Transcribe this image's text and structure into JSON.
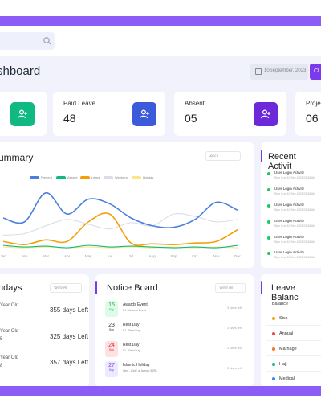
{
  "header": {
    "title": "shboard",
    "date": "10September, 2023",
    "clock_label": "Cl"
  },
  "search": {
    "placeholder": ""
  },
  "cards": [
    {
      "label": "Paid Leave",
      "value": "48",
      "color": "#3b5bdb"
    },
    {
      "label": "Absent",
      "value": "05",
      "color": "#6d28d9"
    },
    {
      "label": "Projec",
      "value": "06"
    }
  ],
  "summary": {
    "title": "ummary",
    "year": "2023"
  },
  "chart_data": {
    "type": "line",
    "x": [
      "Jan",
      "Feb",
      "Mar",
      "Apr",
      "May",
      "Jun",
      "Jul",
      "Aug",
      "Sep",
      "Oct",
      "Nov",
      "Dec"
    ],
    "series": [
      {
        "name": "Present",
        "color": "#4a7fe0",
        "values": [
          40,
          35,
          72,
          45,
          64,
          58,
          40,
          30,
          28,
          38,
          60,
          50
        ]
      },
      {
        "name": "Absent",
        "color": "#10b981",
        "values": [
          5,
          3,
          4,
          2,
          5,
          3,
          4,
          3,
          2,
          3,
          2,
          5
        ]
      },
      {
        "name": "Leave",
        "color": "#f59e0b",
        "values": [
          10,
          6,
          12,
          10,
          35,
          45,
          8,
          7,
          6,
          8,
          10,
          25
        ]
      },
      {
        "name": "Weekend",
        "color": "#dcdce8",
        "values": [
          18,
          20,
          30,
          38,
          32,
          26,
          34,
          30,
          45,
          42,
          35,
          38
        ]
      },
      {
        "name": "Holiday",
        "color": "#fde68a",
        "values": [
          3,
          2,
          3,
          2,
          3,
          2,
          3,
          2,
          3,
          2,
          3,
          2
        ]
      }
    ],
    "ylim": [
      0,
      80
    ]
  },
  "activity": {
    "title": "Recent Activit",
    "items": [
      {
        "title": "User Login Activity",
        "sub": "Sign in at 10 Sep 2023 09:30 AM"
      },
      {
        "title": "User Login Activity",
        "sub": "Sign in at 10 Sep 2023 09:30 AM"
      },
      {
        "title": "User Login Activity",
        "sub": "Sign in at 10 Sep 2023 09:30 AM"
      },
      {
        "title": "User Login Activity",
        "sub": "Sign in at 10 Sep 2023 09:30 AM"
      },
      {
        "title": "User Login Activity",
        "sub": "Sign in at 10 Sep 2023 09:30 AM"
      },
      {
        "title": "User Login Activity",
        "sub": "Sign in at 10 Sep 2023 09:30 AM"
      }
    ]
  },
  "birthdays": {
    "title": "hdays",
    "view_all": "View All",
    "items": [
      {
        "label": "Year Old",
        "days": "355 days Left"
      },
      {
        "label": "Year Old",
        "days": "325 days Left",
        "extra": "5"
      },
      {
        "label": "Year Old",
        "days": "357 days Left",
        "extra": "8"
      }
    ]
  },
  "notice": {
    "title": "Notice Board",
    "view_all": "View All",
    "items": [
      {
        "day": "15",
        "mon": "Sep",
        "title": "Awards Event",
        "desc": "P1 - Awards Event",
        "ago": "3 days left",
        "bg": "#dcfce7",
        "fg": "#16a34a"
      },
      {
        "day": "23",
        "mon": "Sep",
        "title": "Rest Day",
        "desc": "P1 - Rest Day",
        "ago": "3 days left",
        "bg": "#ffffff",
        "fg": "#333333"
      },
      {
        "day": "24",
        "mon": "Sep",
        "title": "Rest Day",
        "desc": "P1 - Rest Day",
        "ago": "3 days left",
        "bg": "#fee2e2",
        "fg": "#dc2626"
      },
      {
        "day": "27",
        "mon": "Sep",
        "title": "Islamic Holiday",
        "desc": "Wed - Rabi' al Awwal (12R)",
        "ago": "3 days left",
        "bg": "#ede9fe",
        "fg": "#7c3aed"
      }
    ]
  },
  "leave": {
    "title": "Leave Balanc",
    "header": "Balance",
    "items": [
      {
        "label": "Sick",
        "color": "#f59e0b"
      },
      {
        "label": "Annual",
        "color": "#ef4444"
      },
      {
        "label": "Marriage",
        "color": "#f97316"
      },
      {
        "label": "Hajj",
        "color": "#10b981"
      },
      {
        "label": "Medical",
        "color": "#3b82f6"
      }
    ]
  }
}
